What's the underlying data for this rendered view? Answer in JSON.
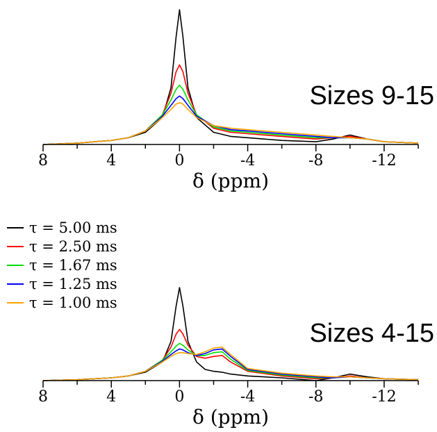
{
  "chart_data": [
    {
      "type": "line",
      "title": "Sizes 9-15",
      "xlabel": "δ (ppm)",
      "ylabel": "",
      "x_reversed": true,
      "xlim": [
        8,
        -14
      ],
      "xticks": [
        8,
        4,
        0,
        -4,
        -8,
        -12
      ],
      "xtick_labels": [
        "8",
        "4",
        "0",
        "-4",
        "-8",
        "-12"
      ],
      "ylim": [
        0,
        1
      ],
      "grid": false,
      "legend": false,
      "series": [
        {
          "name": "τ = 5.00 ms",
          "color": "#000000",
          "x": [
            8,
            6,
            4,
            3,
            2,
            1,
            0.5,
            0.2,
            0,
            -0.2,
            -0.5,
            -1,
            -2,
            -3,
            -4,
            -6,
            -8,
            -9,
            -10,
            -11,
            -12,
            -14
          ],
          "y": [
            0,
            0.01,
            0.03,
            0.05,
            0.09,
            0.2,
            0.42,
            0.8,
            1.0,
            0.8,
            0.42,
            0.2,
            0.09,
            0.06,
            0.05,
            0.03,
            0.02,
            0.04,
            0.07,
            0.04,
            0.02,
            0.01
          ]
        },
        {
          "name": "τ = 2.50 ms",
          "color": "#ff0000",
          "x": [
            8,
            6,
            4,
            3,
            2,
            1,
            0.5,
            0.2,
            0,
            -0.2,
            -0.5,
            -1,
            -2,
            -3,
            -4,
            -6,
            -8,
            -9,
            -10,
            -11,
            -12,
            -14
          ],
          "y": [
            0,
            0.01,
            0.03,
            0.05,
            0.1,
            0.22,
            0.38,
            0.54,
            0.59,
            0.54,
            0.38,
            0.22,
            0.12,
            0.09,
            0.08,
            0.06,
            0.04,
            0.05,
            0.06,
            0.04,
            0.02,
            0.01
          ]
        },
        {
          "name": "τ = 1.67 ms",
          "color": "#00dd00",
          "x": [
            8,
            6,
            4,
            3,
            2,
            1,
            0.5,
            0.2,
            0,
            -0.2,
            -0.5,
            -1,
            -2,
            -3,
            -4,
            -6,
            -8,
            -9,
            -10,
            -11,
            -12,
            -14
          ],
          "y": [
            0,
            0.01,
            0.03,
            0.05,
            0.1,
            0.22,
            0.33,
            0.41,
            0.44,
            0.41,
            0.33,
            0.22,
            0.13,
            0.1,
            0.09,
            0.07,
            0.05,
            0.05,
            0.05,
            0.04,
            0.02,
            0.01
          ]
        },
        {
          "name": "τ = 1.25 ms",
          "color": "#0000ff",
          "x": [
            8,
            6,
            4,
            3,
            2,
            1,
            0.5,
            0.2,
            0,
            -0.2,
            -0.5,
            -1,
            -2,
            -3,
            -4,
            -6,
            -8,
            -9,
            -10,
            -11,
            -12,
            -14
          ],
          "y": [
            0,
            0.01,
            0.03,
            0.05,
            0.1,
            0.21,
            0.29,
            0.34,
            0.36,
            0.34,
            0.29,
            0.21,
            0.14,
            0.11,
            0.1,
            0.08,
            0.06,
            0.05,
            0.05,
            0.04,
            0.02,
            0.01
          ]
        },
        {
          "name": "τ = 1.00 ms",
          "color": "#ffa500",
          "x": [
            8,
            6,
            4,
            3,
            2,
            1,
            0.5,
            0.2,
            0,
            -0.2,
            -0.5,
            -1,
            -2,
            -3,
            -4,
            -6,
            -8,
            -9,
            -10,
            -11,
            -12,
            -14
          ],
          "y": [
            0,
            0.01,
            0.03,
            0.05,
            0.1,
            0.2,
            0.26,
            0.3,
            0.31,
            0.3,
            0.26,
            0.2,
            0.14,
            0.12,
            0.11,
            0.09,
            0.07,
            0.06,
            0.05,
            0.04,
            0.02,
            0.01
          ]
        }
      ]
    },
    {
      "type": "line",
      "title": "Sizes 4-15",
      "xlabel": "δ (ppm)",
      "ylabel": "",
      "x_reversed": true,
      "xlim": [
        8,
        -14
      ],
      "xticks": [
        8,
        4,
        0,
        -4,
        -8,
        -12
      ],
      "xtick_labels": [
        "8",
        "4",
        "0",
        "-4",
        "-8",
        "-12"
      ],
      "ylim": [
        0,
        1
      ],
      "grid": false,
      "legend": true,
      "legend_position": "top-left",
      "series": [
        {
          "name": "τ = 5.00 ms",
          "color": "#000000",
          "x": [
            8,
            6,
            4,
            3,
            2,
            1,
            0.5,
            0.2,
            0,
            -0.2,
            -0.5,
            -1,
            -1.5,
            -2,
            -2.5,
            -3,
            -4,
            -6,
            -8,
            -9,
            -10,
            -11,
            -12,
            -14
          ],
          "y": [
            0,
            0.01,
            0.03,
            0.05,
            0.09,
            0.2,
            0.42,
            0.8,
            1.0,
            0.8,
            0.42,
            0.2,
            0.12,
            0.1,
            0.09,
            0.07,
            0.05,
            0.03,
            0.0,
            0.03,
            0.07,
            0.04,
            0.02,
            0.01
          ]
        },
        {
          "name": "τ = 2.50 ms",
          "color": "#ff0000",
          "x": [
            8,
            6,
            4,
            3,
            2,
            1,
            0.5,
            0.2,
            0,
            -0.2,
            -0.5,
            -1,
            -1.5,
            -2,
            -2.5,
            -3,
            -4,
            -6,
            -8,
            -9,
            -10,
            -11,
            -12,
            -14
          ],
          "y": [
            0,
            0.01,
            0.03,
            0.05,
            0.1,
            0.22,
            0.36,
            0.5,
            0.55,
            0.5,
            0.38,
            0.26,
            0.24,
            0.26,
            0.27,
            0.2,
            0.1,
            0.05,
            0.02,
            0.03,
            0.05,
            0.03,
            0.02,
            0.01
          ]
        },
        {
          "name": "τ = 1.67 ms",
          "color": "#00dd00",
          "x": [
            8,
            6,
            4,
            3,
            2,
            1,
            0.5,
            0.2,
            0,
            -0.2,
            -0.5,
            -1,
            -1.5,
            -2,
            -2.5,
            -3,
            -4,
            -6,
            -8,
            -9,
            -10,
            -11,
            -12,
            -14
          ],
          "y": [
            0,
            0.01,
            0.03,
            0.05,
            0.1,
            0.22,
            0.31,
            0.37,
            0.4,
            0.38,
            0.33,
            0.27,
            0.27,
            0.3,
            0.31,
            0.23,
            0.11,
            0.06,
            0.03,
            0.03,
            0.04,
            0.03,
            0.02,
            0.01
          ]
        },
        {
          "name": "τ = 1.25 ms",
          "color": "#0000ff",
          "x": [
            8,
            6,
            4,
            3,
            2,
            1,
            0.5,
            0.2,
            0,
            -0.2,
            -0.5,
            -1,
            -1.5,
            -2,
            -2.5,
            -3,
            -4,
            -6,
            -8,
            -9,
            -10,
            -11,
            -12,
            -14
          ],
          "y": [
            0,
            0.01,
            0.03,
            0.05,
            0.1,
            0.21,
            0.28,
            0.32,
            0.34,
            0.33,
            0.3,
            0.27,
            0.29,
            0.33,
            0.34,
            0.26,
            0.12,
            0.07,
            0.04,
            0.03,
            0.04,
            0.03,
            0.02,
            0.01
          ]
        },
        {
          "name": "τ = 1.00 ms",
          "color": "#ffa500",
          "x": [
            8,
            6,
            4,
            3,
            2,
            1,
            0.5,
            0.2,
            0,
            -0.2,
            -0.5,
            -1,
            -1.5,
            -2,
            -2.5,
            -3,
            -4,
            -6,
            -8,
            -9,
            -10,
            -11,
            -12,
            -14
          ],
          "y": [
            0,
            0.01,
            0.03,
            0.05,
            0.1,
            0.2,
            0.26,
            0.29,
            0.3,
            0.3,
            0.29,
            0.28,
            0.31,
            0.35,
            0.36,
            0.28,
            0.13,
            0.08,
            0.05,
            0.04,
            0.04,
            0.03,
            0.02,
            0.01
          ]
        }
      ]
    }
  ]
}
